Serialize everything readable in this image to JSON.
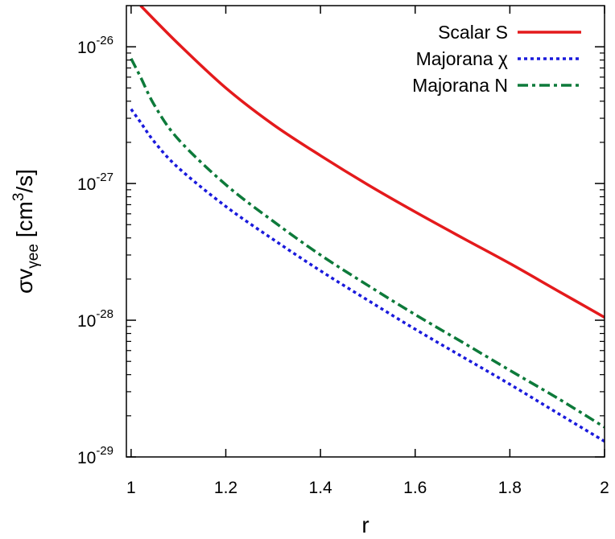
{
  "chart_data": {
    "type": "line",
    "title": "",
    "xlabel": "r",
    "ylabel": {
      "main": "σv",
      "subscript": "γee",
      "unit_open": " [cm",
      "unit_power": "3",
      "unit_close": "/s]"
    },
    "y_scale": "log",
    "xlim": [
      0.99,
      2.0
    ],
    "ylim": [
      1e-29,
      2e-26
    ],
    "x_ticks": [
      {
        "value": 1.0,
        "label": "1"
      },
      {
        "value": 1.2,
        "label": "1.2"
      },
      {
        "value": 1.4,
        "label": "1.4"
      },
      {
        "value": 1.6,
        "label": "1.6"
      },
      {
        "value": 1.8,
        "label": "1.8"
      },
      {
        "value": 2.0,
        "label": "2"
      }
    ],
    "y_ticks": [
      {
        "value": 1e-26,
        "base": "10",
        "exponent": "-26"
      },
      {
        "value": 1e-27,
        "base": "10",
        "exponent": "-27"
      },
      {
        "value": 1e-28,
        "base": "10",
        "exponent": "-28"
      },
      {
        "value": 1e-29,
        "base": "10",
        "exponent": "-29"
      }
    ],
    "grid": false,
    "legend_position": "top-right",
    "series": [
      {
        "name": "Scalar S",
        "color": "#e41a1c",
        "style": "solid",
        "x": [
          1.02,
          1.1,
          1.2,
          1.3,
          1.4,
          1.5,
          1.6,
          1.7,
          1.8,
          1.9,
          2.0
        ],
        "y": [
          2e-26,
          1.05e-26,
          5e-27,
          2.7e-27,
          1.6e-27,
          9.8e-28,
          6.2e-28,
          4e-28,
          2.6e-28,
          1.65e-28,
          1.05e-28
        ]
      },
      {
        "name": "Majorana χ",
        "color": "#1a1adc",
        "style": "dotted",
        "x": [
          1.0,
          1.02,
          1.05,
          1.1,
          1.2,
          1.3,
          1.4,
          1.5,
          1.6,
          1.7,
          1.8,
          1.9,
          2.0
        ],
        "y": [
          3.5e-27,
          2.8e-27,
          2e-27,
          1.3e-27,
          6.8e-28,
          3.9e-28,
          2.3e-28,
          1.4e-28,
          8.6e-29,
          5.4e-29,
          3.4e-29,
          2.1e-29,
          1.3e-29
        ]
      },
      {
        "name": "Majorana N",
        "color": "#0d7a3a",
        "style": "dashdot",
        "x": [
          1.0,
          1.02,
          1.05,
          1.1,
          1.2,
          1.3,
          1.4,
          1.5,
          1.6,
          1.7,
          1.8,
          1.9,
          2.0
        ],
        "y": [
          8.2e-27,
          6e-27,
          3.7e-27,
          2.1e-27,
          9.8e-28,
          5.3e-28,
          3e-28,
          1.8e-28,
          1.1e-28,
          6.9e-29,
          4.3e-29,
          2.7e-29,
          1.65e-29
        ]
      }
    ]
  }
}
